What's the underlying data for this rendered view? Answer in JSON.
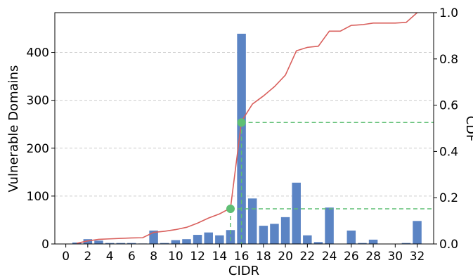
{
  "chart_data": {
    "type": "bar",
    "xlabel": "CIDR",
    "ylabel": "Vulnerable Domains",
    "y2label": "CDF",
    "xlim": [
      -1,
      33.5
    ],
    "ylim": [
      0,
      483
    ],
    "y2lim": [
      0,
      1.0
    ],
    "xticks": [
      0,
      2,
      4,
      6,
      8,
      10,
      12,
      14,
      16,
      18,
      20,
      22,
      24,
      26,
      28,
      30,
      32
    ],
    "yticks": [
      0,
      100,
      200,
      300,
      400
    ],
    "y2ticks": [
      0.0,
      0.2,
      0.4,
      0.6,
      0.8,
      1.0
    ],
    "grid": "horizontal dashed",
    "colors": {
      "bars": "#5b84c4",
      "cdf": "#d9605d",
      "marker": "#5fbf74"
    },
    "bars": {
      "x": [
        1,
        2,
        3,
        4,
        5,
        6,
        7,
        8,
        9,
        10,
        11,
        12,
        13,
        14,
        15,
        16,
        17,
        18,
        19,
        20,
        21,
        22,
        23,
        24,
        25,
        26,
        27,
        28,
        29,
        30,
        31,
        32
      ],
      "values": [
        3,
        10,
        7,
        2,
        2,
        2,
        1,
        28,
        2,
        8,
        10,
        19,
        24,
        18,
        29,
        439,
        95,
        38,
        42,
        56,
        128,
        18,
        4,
        76,
        0,
        28,
        2,
        9,
        0,
        0,
        2,
        48
      ]
    },
    "cdf": {
      "x": [
        1,
        2,
        3,
        4,
        5,
        6,
        7,
        8,
        9,
        10,
        11,
        12,
        13,
        14,
        15,
        16,
        17,
        18,
        19,
        20,
        21,
        22,
        23,
        24,
        25,
        26,
        27,
        28,
        29,
        30,
        31,
        32
      ],
      "values": [
        0.003,
        0.013,
        0.02,
        0.022,
        0.024,
        0.026,
        0.027,
        0.05,
        0.055,
        0.062,
        0.072,
        0.09,
        0.112,
        0.13,
        0.155,
        0.53,
        0.605,
        0.64,
        0.68,
        0.73,
        0.835,
        0.85,
        0.855,
        0.92,
        0.92,
        0.945,
        0.948,
        0.955,
        0.955,
        0.955,
        0.958,
        1.0
      ]
    },
    "markers": [
      {
        "x": 15,
        "cdf": 0.152
      },
      {
        "x": 16,
        "cdf": 0.525
      }
    ]
  }
}
